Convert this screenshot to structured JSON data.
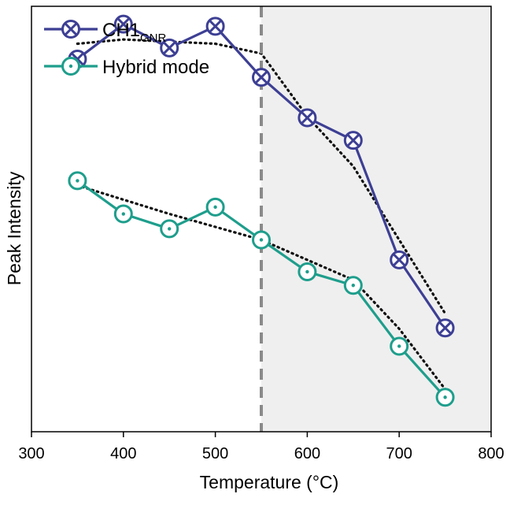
{
  "chart_data": {
    "type": "line",
    "xlabel": "Temperature (°C)",
    "ylabel": "Peak Intensity",
    "xlim": [
      300,
      800
    ],
    "ylim": [
      0,
      100
    ],
    "xticks": [
      "300",
      "400",
      "500",
      "600",
      "700",
      "800"
    ],
    "grid": false,
    "legend_position": "top-left",
    "vertical_line_x": 550,
    "shaded_region_x": [
      550,
      800
    ],
    "colors": {
      "ch1": "#3d3f94",
      "hybrid": "#1e9e8c",
      "fit": "#111111",
      "divider": "#8a8a8a",
      "shade": "#efefef"
    },
    "x": [
      350,
      400,
      450,
      500,
      550,
      600,
      650,
      700,
      750
    ],
    "series": [
      {
        "name_main": "CH1",
        "name_sub": "GNR",
        "marker": "circle-x",
        "values": [
          87.6,
          95.8,
          90.2,
          95.3,
          83.3,
          73.8,
          68.5,
          40.4,
          24.4
        ],
        "fit": [
          [
            350,
            91.2
          ],
          [
            400,
            92.2
          ],
          [
            500,
            91.2
          ],
          [
            550,
            88.9
          ],
          [
            600,
            74.1
          ],
          [
            650,
            62.4
          ],
          [
            700,
            45.1
          ],
          [
            750,
            27.8
          ]
        ]
      },
      {
        "name": "Hybrid mode",
        "marker": "circle-dot",
        "values": [
          59.0,
          51.2,
          47.7,
          52.8,
          45.1,
          37.6,
          34.4,
          20.1,
          8.1
        ],
        "fit": [
          [
            350,
            57.9
          ],
          [
            450,
            51.2
          ],
          [
            550,
            45.1
          ],
          [
            650,
            35.7
          ],
          [
            700,
            24.2
          ],
          [
            750,
            10.0
          ]
        ]
      }
    ]
  }
}
